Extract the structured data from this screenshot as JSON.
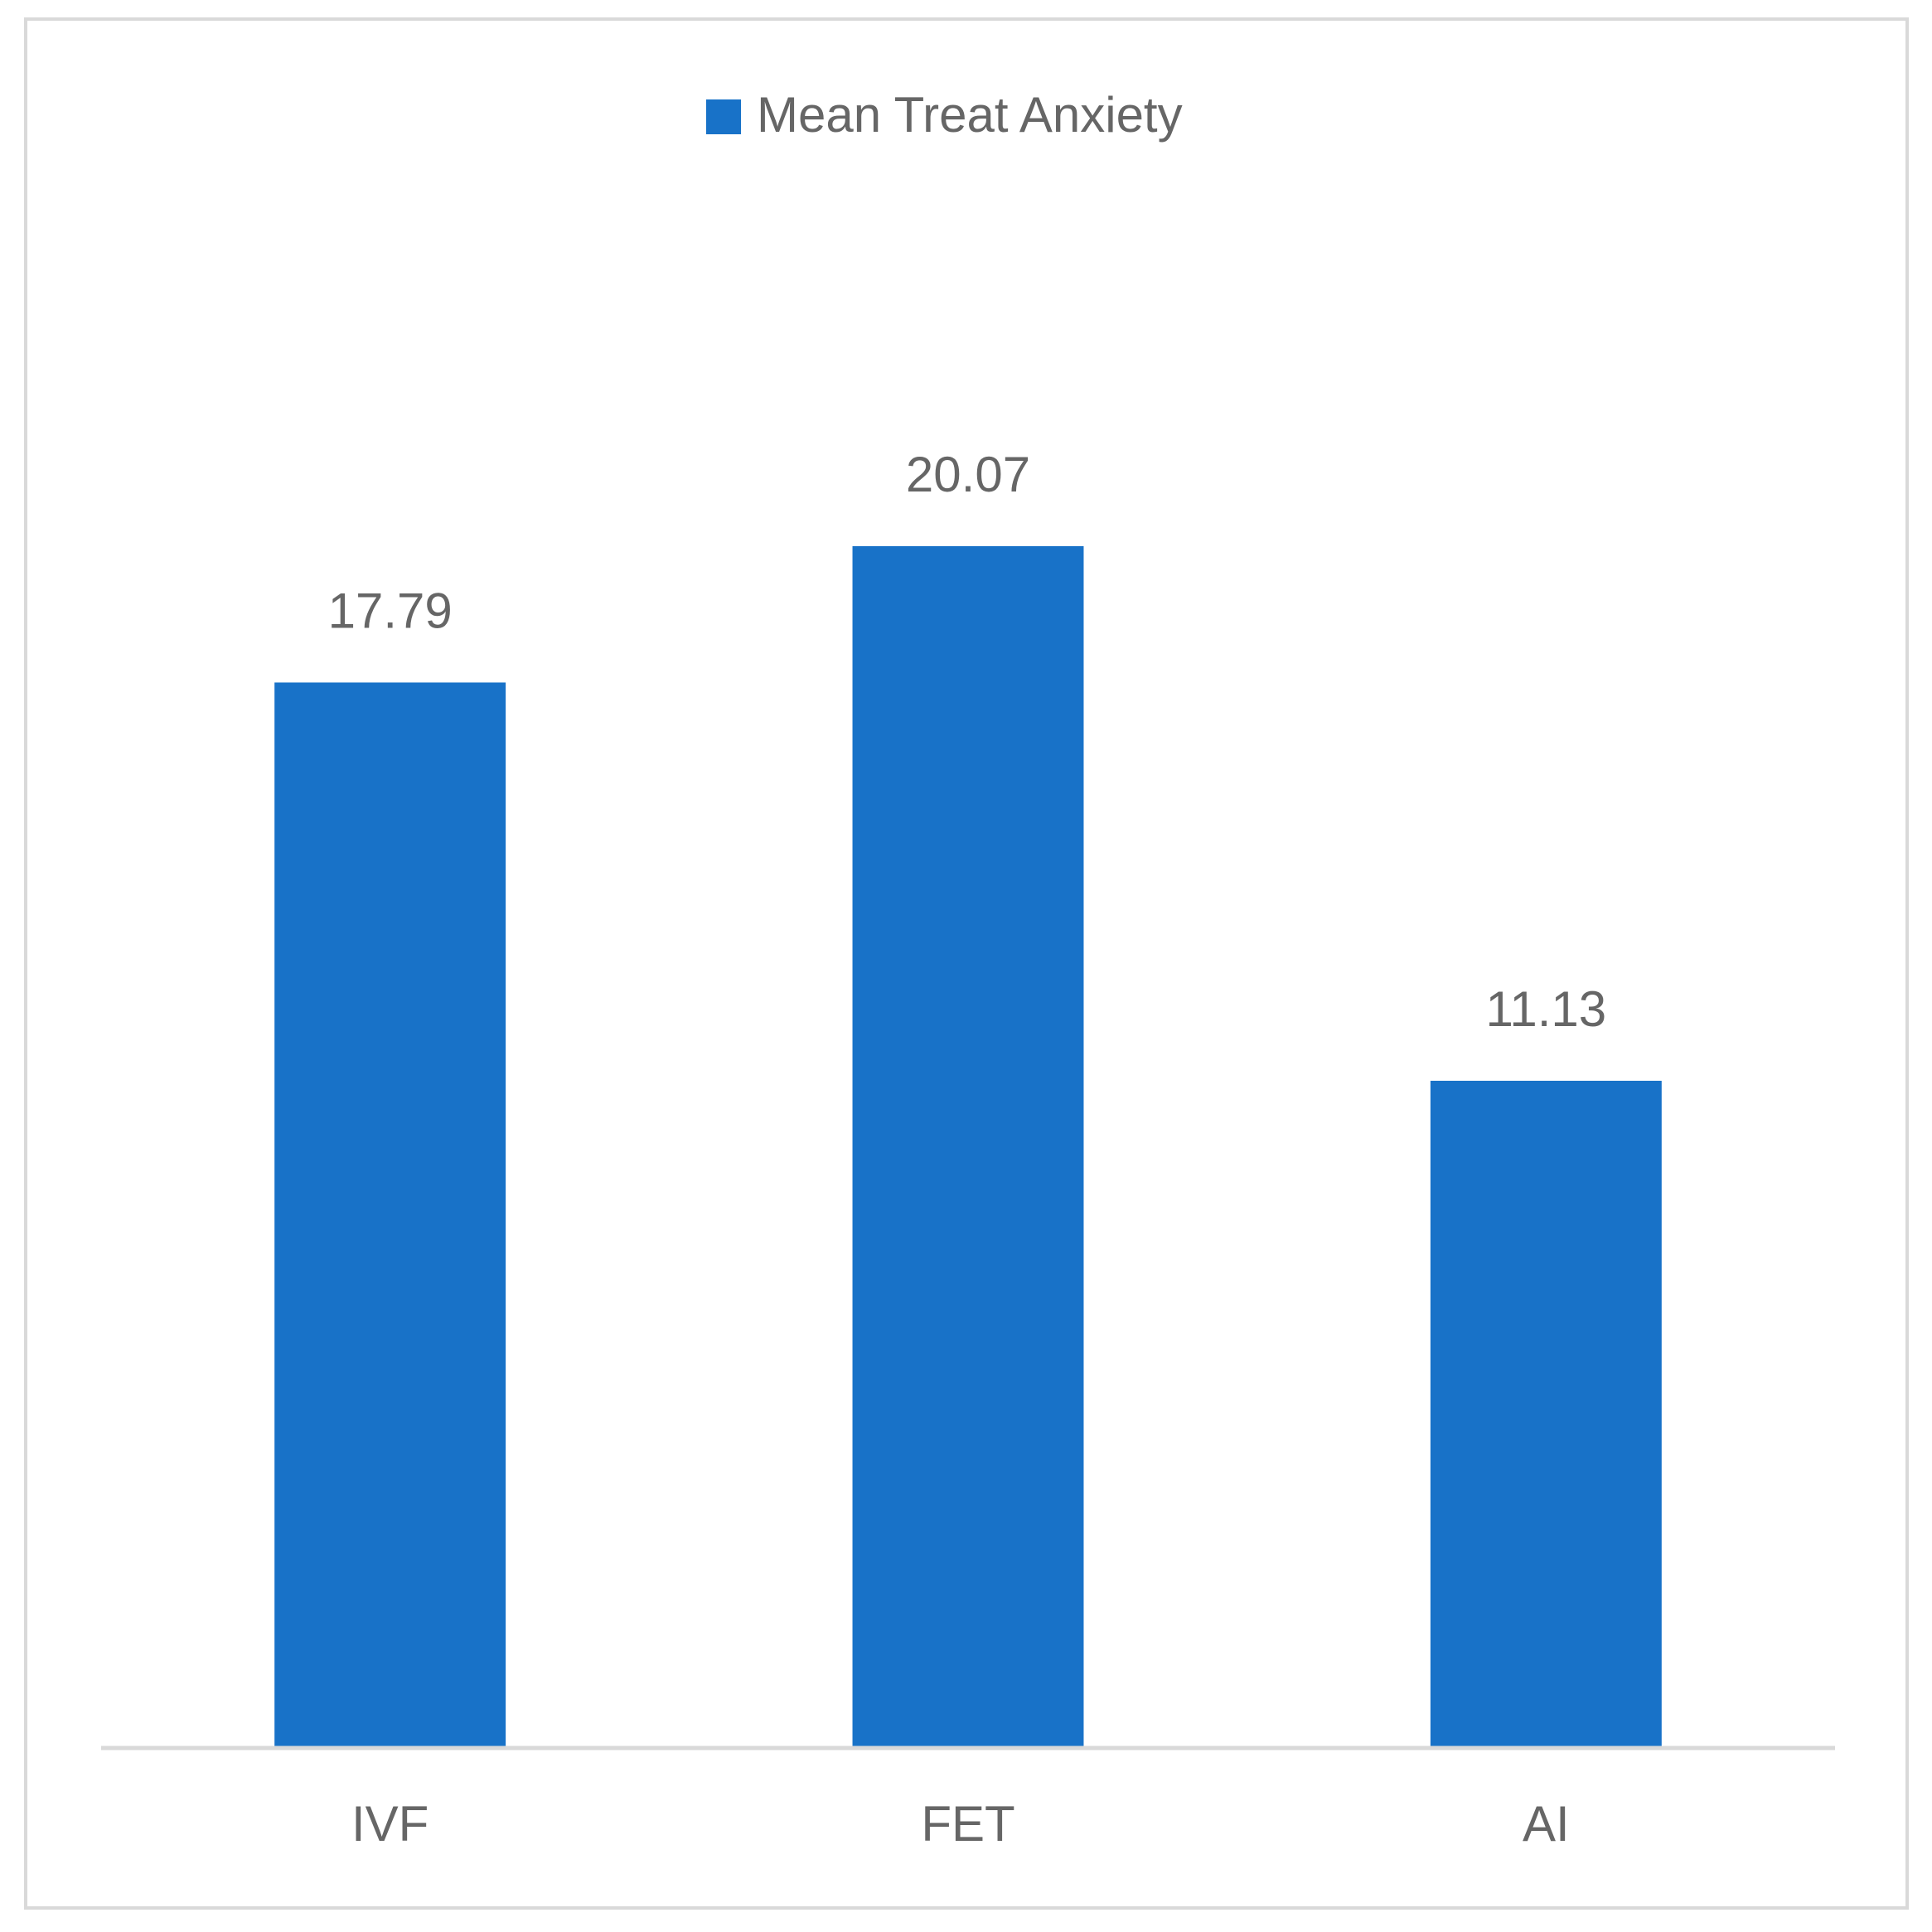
{
  "chart_data": {
    "type": "bar",
    "categories": [
      "IVF",
      "FET",
      "AI"
    ],
    "series": [
      {
        "name": "Mean Treat Anxiety",
        "color": "#1872c8",
        "values": [
          17.79,
          20.07,
          11.13
        ]
      }
    ],
    "legend": "top"
  }
}
